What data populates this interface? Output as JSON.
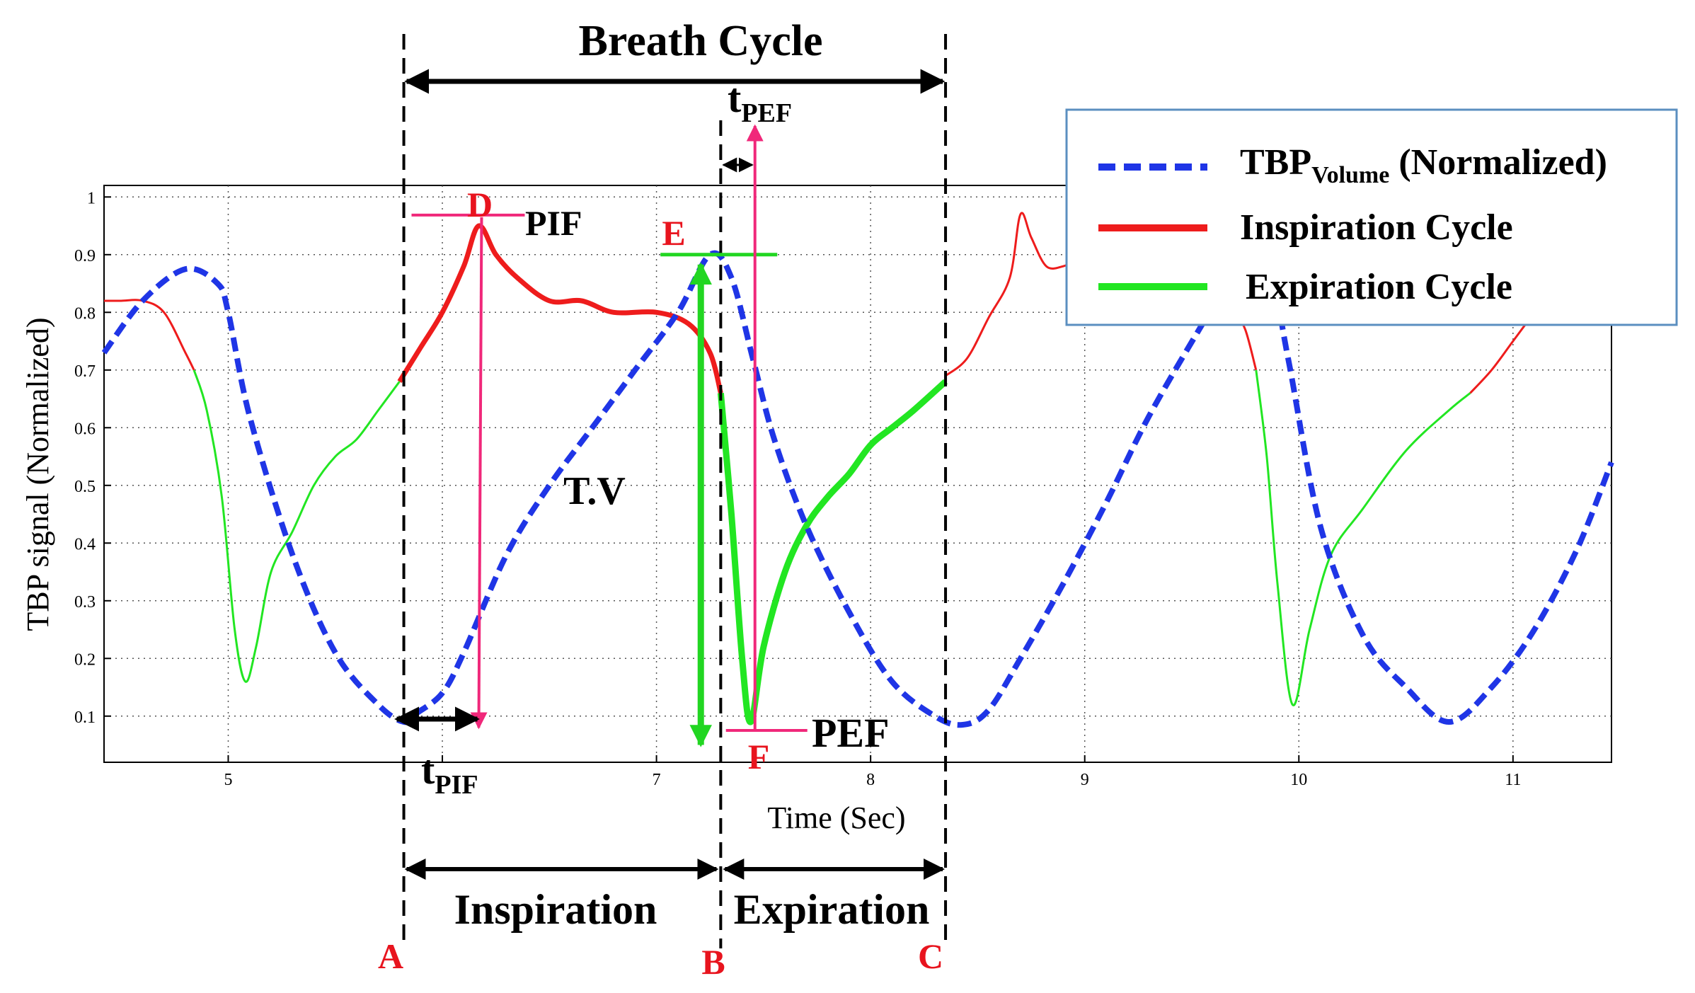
{
  "chart_data": {
    "type": "line",
    "title": "",
    "xlabel": "Time (Sec)",
    "ylabel": "TBP signal (Normalized)",
    "xlim": [
      4.42,
      11.46
    ],
    "ylim": [
      0.02,
      1.02
    ],
    "grid": true,
    "x_ticks": [
      5,
      6,
      7,
      8,
      9,
      10,
      11
    ],
    "x_tick_labels": [
      "5",
      "",
      "7",
      "8",
      "9",
      "10",
      "11"
    ],
    "y_ticks": [
      0.1,
      0.2,
      0.3,
      0.4,
      0.5,
      0.6,
      0.7,
      0.8,
      0.9,
      1
    ],
    "y_tick_labels": [
      "0.1",
      "0.2",
      "0.3",
      "0.4",
      "0.5",
      "0.6",
      "0.7",
      "0.8",
      "0.9",
      "1"
    ],
    "legend": {
      "placement": "top-right",
      "entries": [
        {
          "label_main": "TBP",
          "label_sub": "Volume",
          "label_rest": " (Normalized)",
          "color": "#1f35e6",
          "style": "dashed"
        },
        {
          "label": "Inspiration Cycle",
          "color": "#ee1c1c",
          "style": "solid"
        },
        {
          "label": "Expiration Cycle",
          "color": "#22e622",
          "style": "solid"
        }
      ]
    },
    "series": [
      {
        "name": "TBP Volume (Normalized)",
        "color": "#1f35e6",
        "style": "dashed",
        "x": [
          4.42,
          4.6,
          4.8,
          4.95,
          5.0,
          5.1,
          5.3,
          5.5,
          5.7,
          5.82,
          5.88,
          6.0,
          6.1,
          6.3,
          6.5,
          6.7,
          6.9,
          7.1,
          7.25,
          7.35,
          7.45,
          7.55,
          7.7,
          7.9,
          8.1,
          8.3,
          8.43,
          8.55,
          8.7,
          8.9,
          9.1,
          9.3,
          9.55,
          9.7,
          9.85,
          9.95,
          10.1,
          10.3,
          10.5,
          10.7,
          10.9,
          11.1,
          11.3,
          11.46
        ],
        "y": [
          0.73,
          0.82,
          0.875,
          0.85,
          0.8,
          0.62,
          0.38,
          0.21,
          0.12,
          0.09,
          0.105,
          0.14,
          0.21,
          0.38,
          0.5,
          0.6,
          0.7,
          0.8,
          0.9,
          0.86,
          0.72,
          0.58,
          0.43,
          0.28,
          0.16,
          0.1,
          0.085,
          0.11,
          0.2,
          0.33,
          0.47,
          0.62,
          0.78,
          0.87,
          0.89,
          0.72,
          0.43,
          0.24,
          0.15,
          0.09,
          0.15,
          0.25,
          0.39,
          0.54
        ]
      },
      {
        "name": "Inspiration Cycle",
        "color": "#ee1c1c",
        "style": "solid",
        "segments": [
          {
            "x": [
              4.42,
              4.5,
              4.6,
              4.7,
              4.8,
              4.84
            ],
            "y": [
              0.82,
              0.82,
              0.82,
              0.8,
              0.73,
              0.7
            ]
          },
          {
            "x": [
              5.8,
              5.9,
              6.0,
              6.1,
              6.17,
              6.25,
              6.35,
              6.5,
              6.65,
              6.8,
              7.0,
              7.15,
              7.25,
              7.3
            ],
            "y": [
              0.68,
              0.74,
              0.8,
              0.88,
              0.95,
              0.9,
              0.86,
              0.82,
              0.82,
              0.8,
              0.8,
              0.78,
              0.73,
              0.66
            ]
          },
          {
            "x": [
              8.35,
              8.45,
              8.55,
              8.65,
              8.7,
              8.75,
              8.82,
              8.9,
              8.95
            ],
            "y": [
              0.69,
              0.72,
              0.79,
              0.86,
              0.97,
              0.93,
              0.88,
              0.88,
              0.89
            ]
          },
          {
            "x": [
              9.7,
              9.75,
              9.8
            ],
            "y": [
              0.8,
              0.77,
              0.7
            ]
          },
          {
            "x": [
              10.8,
              10.9,
              11.0,
              11.1
            ],
            "y": [
              0.66,
              0.7,
              0.75,
              0.8
            ]
          }
        ]
      },
      {
        "name": "Expiration Cycle",
        "color": "#22e622",
        "style": "solid",
        "segments": [
          {
            "x": [
              4.84,
              4.9,
              4.97,
              5.03,
              5.08,
              5.13,
              5.2,
              5.3,
              5.4,
              5.5,
              5.6,
              5.7,
              5.8
            ],
            "y": [
              0.7,
              0.63,
              0.48,
              0.25,
              0.16,
              0.22,
              0.35,
              0.42,
              0.5,
              0.55,
              0.58,
              0.63,
              0.68
            ]
          },
          {
            "x": [
              7.3,
              7.35,
              7.4,
              7.44,
              7.5,
              7.6,
              7.7,
              7.8,
              7.9,
              8.0,
              8.1,
              8.2,
              8.35
            ],
            "y": [
              0.66,
              0.45,
              0.2,
              0.09,
              0.22,
              0.35,
              0.43,
              0.48,
              0.52,
              0.57,
              0.6,
              0.63,
              0.68
            ]
          },
          {
            "x": [
              9.8,
              9.85,
              9.9,
              9.97,
              10.05,
              10.15,
              10.3,
              10.5,
              10.7,
              10.8
            ],
            "y": [
              0.7,
              0.55,
              0.33,
              0.12,
              0.25,
              0.38,
              0.46,
              0.56,
              0.63,
              0.66
            ]
          }
        ]
      }
    ],
    "annotations": {
      "breath_cycle_label": "Breath Cycle",
      "inspiration_label": "Inspiration",
      "expiration_label": "Expiration",
      "tv_label": "T.V",
      "pif_label": "PIF",
      "pef_label": "PEF",
      "t_pif_main": "t",
      "t_pif_sub": "PIF",
      "t_pef_main": "t",
      "t_pef_sub": "PEF",
      "point_a": "A",
      "point_b": "B",
      "point_c": "C",
      "point_d": "D",
      "point_e": "E",
      "point_f": "F",
      "x_a": 5.82,
      "x_b": 7.3,
      "x_c": 8.35,
      "d_point": [
        6.17,
        0.965
      ],
      "e_point": [
        7.25,
        0.9
      ],
      "f_point": [
        7.44,
        0.09
      ]
    }
  }
}
